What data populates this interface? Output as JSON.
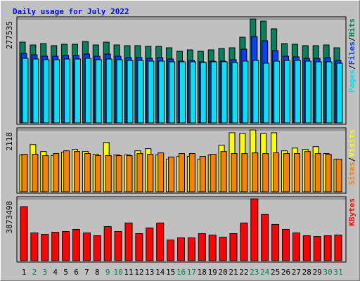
{
  "chart_data": [
    {
      "type": "bar",
      "title": "Daily usage for July 2022",
      "ylim": [
        0,
        277535
      ],
      "yticks": [
        277535
      ],
      "legend_separator": "/",
      "series": [
        {
          "name": "Hits",
          "color": "#00805c",
          "values": [
            215600,
            208100,
            211900,
            206300,
            210000,
            210000,
            217500,
            208100,
            215600,
            208100,
            206300,
            206300,
            204400,
            204400,
            200600,
            191300,
            195000,
            191300,
            195000,
            198800,
            200600,
            228800,
            277535,
            271900,
            251300,
            211900,
            210000,
            206300,
            206300,
            208100,
            200600
          ]
        },
        {
          "name": "Files",
          "color": "#0040ff",
          "values": [
            185600,
            181900,
            178100,
            178100,
            180000,
            180000,
            183800,
            178100,
            183800,
            178100,
            174400,
            174400,
            172500,
            174400,
            170600,
            165000,
            166900,
            163100,
            165000,
            165000,
            168800,
            196900,
            230600,
            219400,
            193100,
            178100,
            176300,
            172500,
            172500,
            174400,
            166900
          ]
        },
        {
          "name": "Pages",
          "color": "#00e0ff",
          "values": [
            172500,
            170600,
            168800,
            168800,
            170600,
            170600,
            172500,
            168800,
            170600,
            168800,
            166900,
            166900,
            165000,
            165000,
            163100,
            163100,
            163100,
            161300,
            163100,
            163100,
            161300,
            165000,
            166900,
            159400,
            165000,
            166900,
            166900,
            165000,
            163100,
            163100,
            159400
          ]
        }
      ]
    },
    {
      "type": "bar",
      "ylim": [
        0,
        2118
      ],
      "yticks": [
        2118
      ],
      "legend_separator": "/",
      "series": [
        {
          "name": "Visits",
          "color": "#ffff00",
          "values": [
            1261,
            1618,
            1380,
            1238,
            1357,
            1452,
            1380,
            1285,
            1690,
            1261,
            1261,
            1404,
            1476,
            1261,
            1119,
            1214,
            1214,
            1119,
            1261,
            1595,
            2023,
            1999,
            2118,
            1999,
            2023,
            1404,
            1499,
            1452,
            1547,
            1309,
            1119
          ]
        },
        {
          "name": "Sites",
          "color": "#ff8000",
          "values": [
            1285,
            1285,
            1238,
            1309,
            1404,
            1380,
            1309,
            1238,
            1238,
            1238,
            1238,
            1309,
            1285,
            1333,
            1190,
            1309,
            1309,
            1214,
            1285,
            1380,
            1309,
            1309,
            1333,
            1309,
            1333,
            1309,
            1309,
            1380,
            1309,
            1285,
            1119
          ]
        }
      ]
    },
    {
      "type": "bar",
      "ylim": [
        0,
        3873498
      ],
      "yticks": [
        3873498
      ],
      "categories": [
        "1",
        "2",
        "3",
        "4",
        "5",
        "6",
        "7",
        "8",
        "9",
        "10",
        "11",
        "12",
        "13",
        "14",
        "15",
        "16",
        "17",
        "18",
        "19",
        "20",
        "21",
        "22",
        "23",
        "24",
        "25",
        "26",
        "27",
        "28",
        "29",
        "30",
        "31"
      ],
      "category_colors": [
        "#000000",
        "#00805c",
        "#00805c",
        "#000000",
        "#000000",
        "#000000",
        "#000000",
        "#000000",
        "#00805c",
        "#00805c",
        "#000000",
        "#000000",
        "#000000",
        "#000000",
        "#000000",
        "#00805c",
        "#00805c",
        "#000000",
        "#000000",
        "#000000",
        "#000000",
        "#000000",
        "#00805c",
        "#00805c",
        "#000000",
        "#000000",
        "#000000",
        "#000000",
        "#000000",
        "#00805c",
        "#00805c"
      ],
      "series": [
        {
          "name": "KBytes",
          "color": "#ff0000",
          "values": [
            3383700,
            1736400,
            1647400,
            1780900,
            1825400,
            1959000,
            1736400,
            1558300,
            2137100,
            1825400,
            2359700,
            1691900,
            2048100,
            2359700,
            1291200,
            1424700,
            1424700,
            1691900,
            1602800,
            1469300,
            1691900,
            2359700,
            3873498,
            2894000,
            2270700,
            1959000,
            1736400,
            1558300,
            1513800,
            1558300,
            1602800
          ]
        }
      ]
    }
  ]
}
